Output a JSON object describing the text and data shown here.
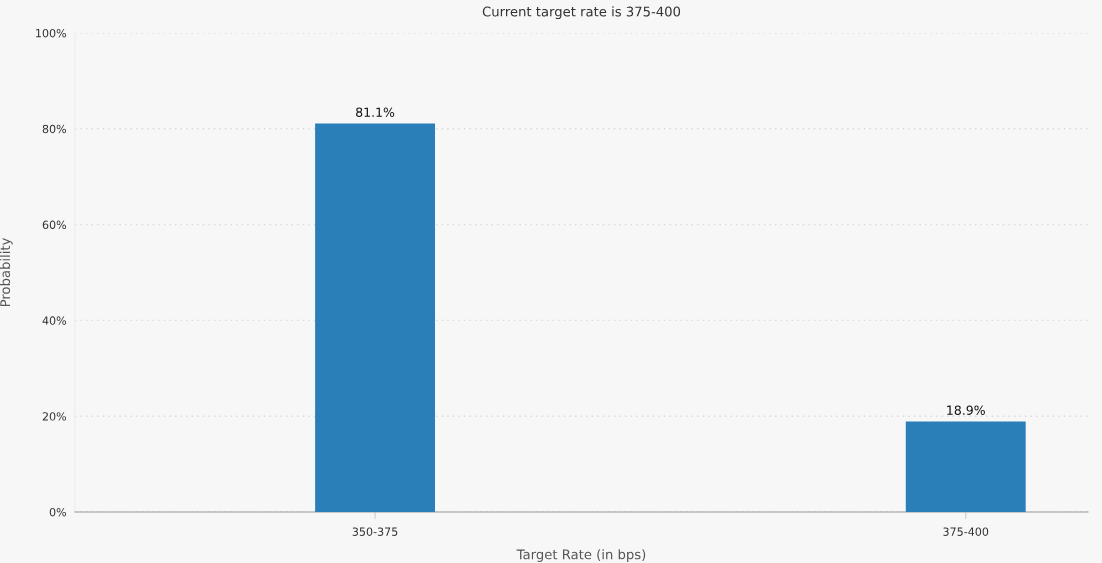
{
  "chart_data": {
    "type": "bar",
    "title": "Current target rate is 375-400",
    "xlabel": "Target Rate (in bps)",
    "ylabel": "Probability",
    "categories": [
      "350-375",
      "375-400"
    ],
    "values": [
      81.1,
      18.9
    ],
    "value_labels": [
      "81.1%",
      "18.9%"
    ],
    "color": "#2a7fb8",
    "ylim": [
      0,
      100
    ],
    "yticks": [
      {
        "value": 0,
        "label": "0%"
      },
      {
        "value": 20,
        "label": "20%"
      },
      {
        "value": 40,
        "label": "40%"
      },
      {
        "value": 60,
        "label": "60%"
      },
      {
        "value": 80,
        "label": "80%"
      },
      {
        "value": 100,
        "label": "100%"
      }
    ],
    "grid": "y",
    "legend": false
  }
}
